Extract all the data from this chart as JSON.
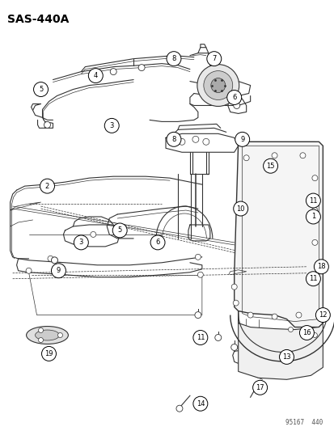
{
  "title": "SAS-440A",
  "background_color": "#ffffff",
  "line_color": "#333333",
  "watermark": "95167  440",
  "fig_width": 4.14,
  "fig_height": 5.33,
  "dpi": 100
}
